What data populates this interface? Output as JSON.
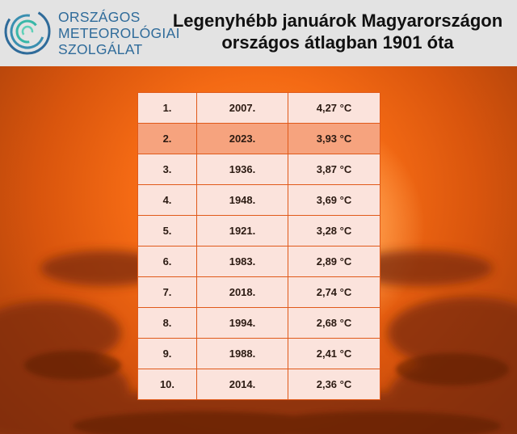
{
  "header": {
    "logo_lines": [
      "ORSZÁGOS",
      "METEOROLÓGIAI",
      "SZOLGÁLAT"
    ],
    "title_lines": [
      "Legenyhébb januárok Magyarországon",
      "országos átlagban 1901 óta"
    ]
  },
  "colors": {
    "logo_blue": "#2f6b9a",
    "logo_teal": "#39b7a8",
    "highlight_row": "#f6a37e",
    "row_background": "#fbe3dc"
  },
  "table": {
    "highlight_index": 1,
    "rows": [
      {
        "rank": "1.",
        "year": "2007.",
        "temp": "4,27 °C"
      },
      {
        "rank": "2.",
        "year": "2023.",
        "temp": "3,93 °C"
      },
      {
        "rank": "3.",
        "year": "1936.",
        "temp": "3,87 °C"
      },
      {
        "rank": "4.",
        "year": "1948.",
        "temp": "3,69 °C"
      },
      {
        "rank": "5.",
        "year": "1921.",
        "temp": "3,28 °C"
      },
      {
        "rank": "6.",
        "year": "1983.",
        "temp": "2,89 °C"
      },
      {
        "rank": "7.",
        "year": "2018.",
        "temp": "2,74 °C"
      },
      {
        "rank": "8.",
        "year": "1994.",
        "temp": "2,68 °C"
      },
      {
        "rank": "9.",
        "year": "1988.",
        "temp": "2,41 °C"
      },
      {
        "rank": "10.",
        "year": "2014.",
        "temp": "2,36 °C"
      }
    ]
  }
}
